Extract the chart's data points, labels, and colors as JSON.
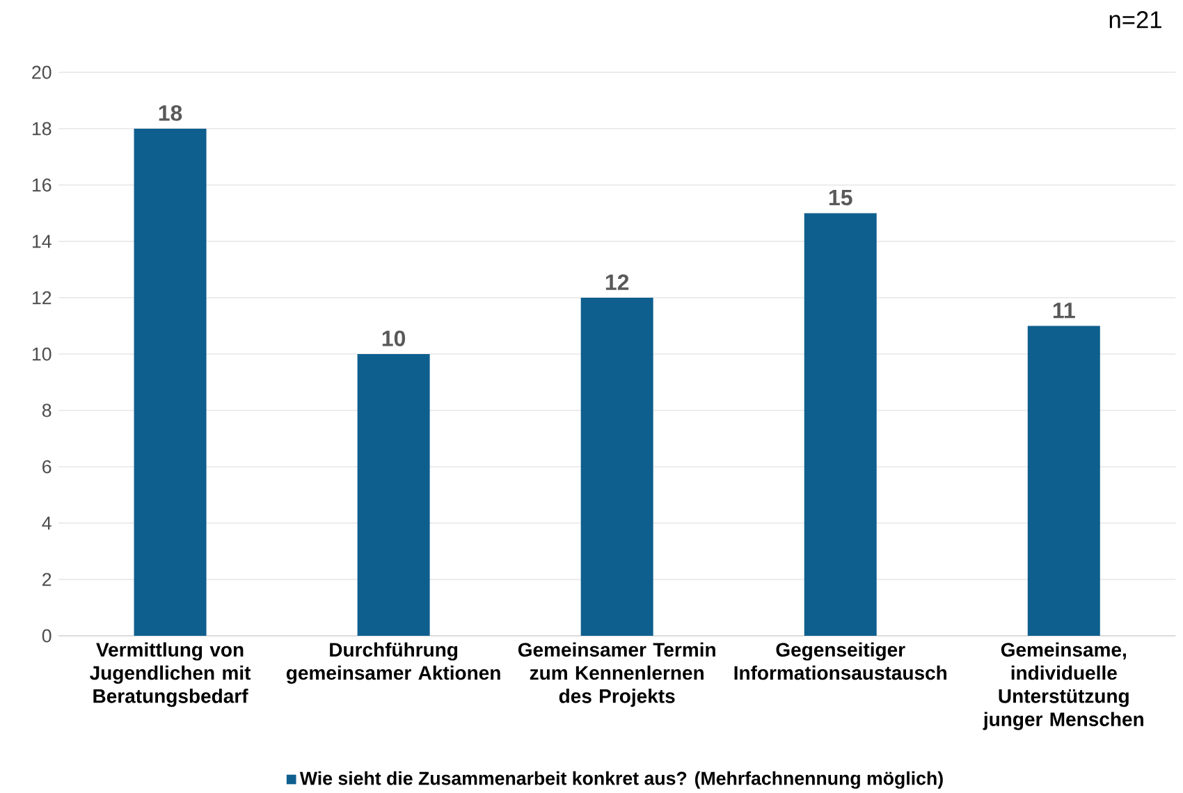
{
  "chart_data": {
    "type": "bar",
    "annotations": [
      "n=21"
    ],
    "categories": [
      "Vermittlung von Jugendlichen mit Beratungsbedarf",
      "Durchführung gemeinsamer Aktionen",
      "Gemeinsamer Termin zum Kennenlernen des Projekts",
      "Gegenseitiger Informationsaustausch",
      "Gemeinsame, individuelle Unterstützung junger Menschen"
    ],
    "series": [
      {
        "name": "Wie sieht die Zusammenarbeit konkret aus? (Mehrfachnennung möglich)",
        "color": "#0e5f8e",
        "values": [
          18,
          10,
          12,
          15,
          11
        ]
      }
    ],
    "ylim": [
      0,
      20
    ],
    "yticks": [
      0,
      2,
      4,
      6,
      8,
      10,
      12,
      14,
      16,
      18,
      20
    ],
    "grid": "y",
    "legend": "bottom",
    "data_labels": true
  }
}
